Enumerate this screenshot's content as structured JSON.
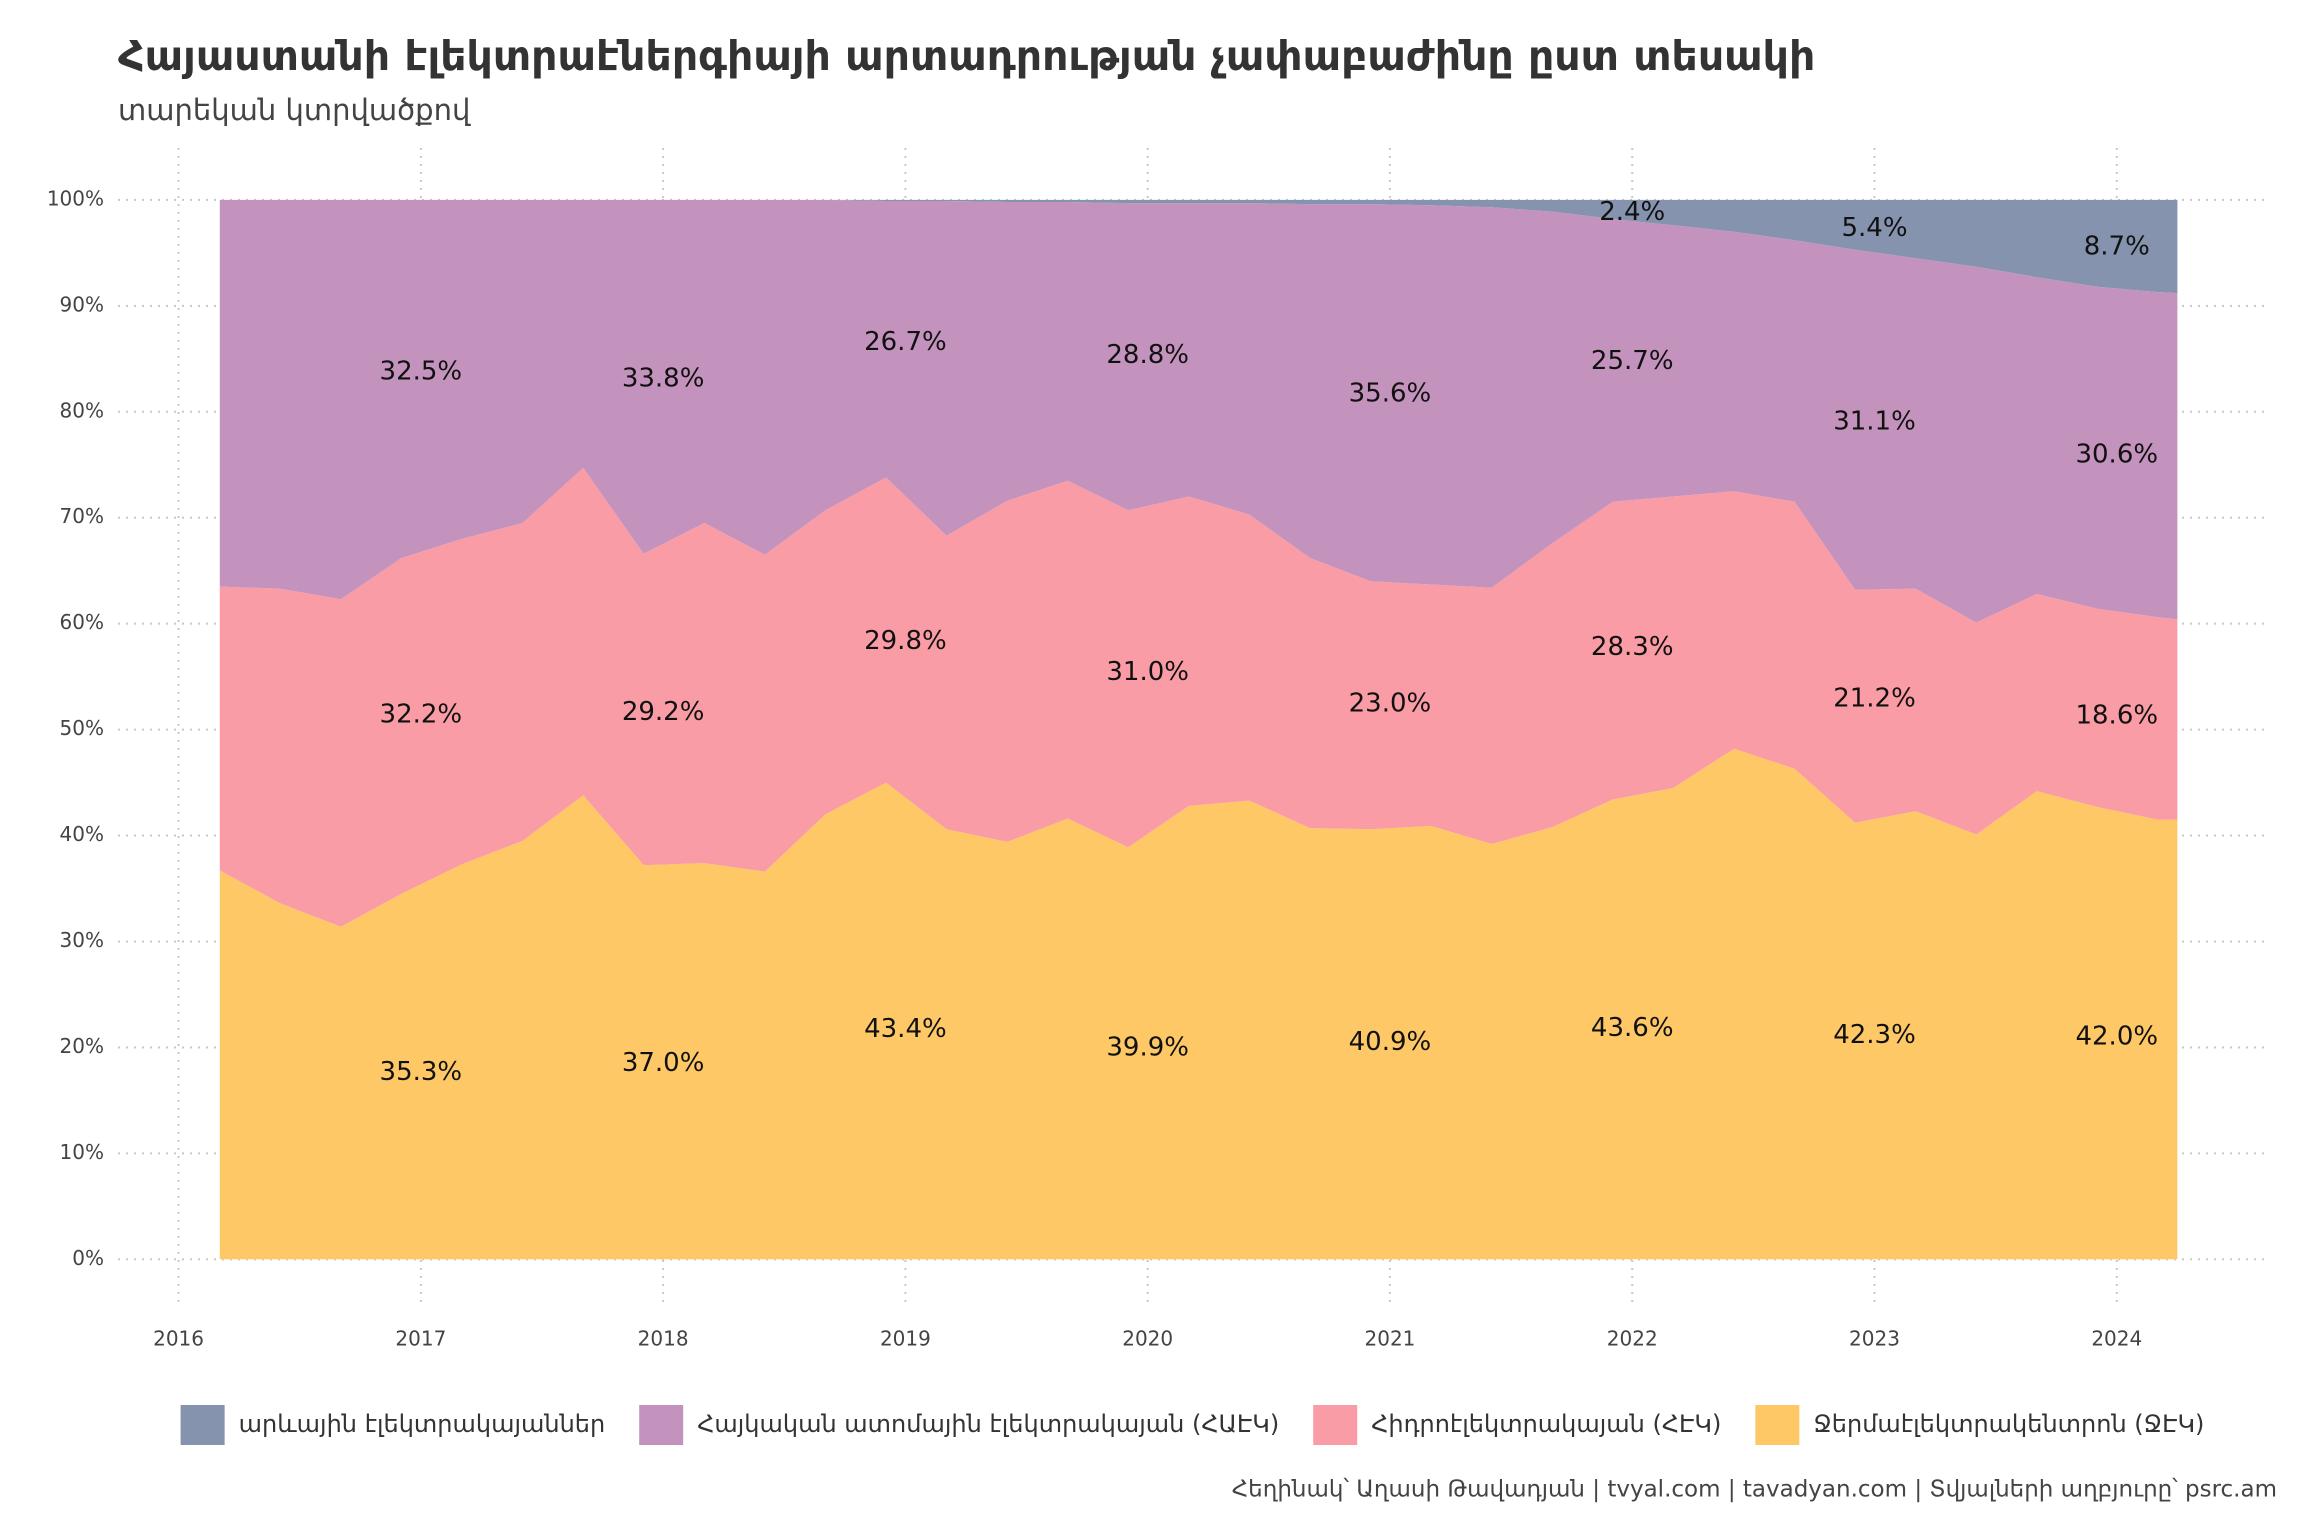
{
  "chart_data": {
    "type": "stacked_area",
    "title": "Հայաստանի էլեկտրաէներգիայի արտադրության չափաբաժինը ըստ տեսակի",
    "subtitle": "տարեկան կտրվածքով",
    "caption": "Հեղինակ՝ Աղասի Թավադյան   |   tvyal.com   |   tavadyan.com   |   Տվյալների աղբյուրը՝ psrc.am",
    "x": [
      2016.17,
      2016.42,
      2016.67,
      2016.92,
      2017.17,
      2017.42,
      2017.67,
      2017.92,
      2018.17,
      2018.42,
      2018.67,
      2018.92,
      2019.17,
      2019.42,
      2019.67,
      2019.92,
      2020.17,
      2020.42,
      2020.67,
      2020.92,
      2021.17,
      2021.42,
      2021.67,
      2021.92,
      2022.17,
      2022.42,
      2022.67,
      2022.92,
      2023.17,
      2023.42,
      2023.67,
      2023.92,
      2024.17,
      2024.25
    ],
    "series": [
      {
        "name": "արևային էլեկտրակայաններ",
        "color": "#8593ae",
        "values": [
          0,
          0,
          0,
          0,
          0,
          0,
          0,
          0,
          0,
          0,
          0,
          0.1,
          0.1,
          0.2,
          0.2,
          0.3,
          0.3,
          0.3,
          0.4,
          0.4,
          0.5,
          0.7,
          1.1,
          1.8,
          2.4,
          3,
          3.8,
          4.7,
          5.5,
          6.3,
          7.3,
          8.2,
          8.7,
          8.8
        ],
        "annual_values": [
          null,
          null,
          null,
          null,
          null,
          2.4,
          5.4,
          8.7
        ],
        "annual_value_labels": [
          null,
          null,
          null,
          null,
          null,
          "2.4%",
          "5.4%",
          "8.7%"
        ]
      },
      {
        "name": "Հայկական ատոմային էլեկտրակայան (ՀԱԷԿ)",
        "color": "#c493bd",
        "values": [
          36.5,
          36.7,
          37.7,
          33.8,
          32,
          30.5,
          25.3,
          33.4,
          30.5,
          33.5,
          29.3,
          26.1,
          31.6,
          28.2,
          26.3,
          29,
          27.7,
          29.4,
          33.4,
          35.6,
          35.8,
          35.9,
          31.3,
          26.7,
          25.6,
          24.5,
          24.7,
          32.1,
          31.2,
          33.6,
          29.9,
          30.4,
          30.7,
          30.8
        ],
        "annual_values": [
          32.5,
          33.8,
          26.7,
          28.8,
          35.6,
          25.7,
          31.1,
          30.6
        ],
        "annual_value_labels": [
          "32.5%",
          "33.8%",
          "26.7%",
          "28.8%",
          "35.6%",
          "25.7%",
          "31.1%",
          "30.6%"
        ]
      },
      {
        "name": "Հիդրոէլեկտրակայան (ՀԷԿ)",
        "color": "#f99ca5",
        "values": [
          26.8,
          29.7,
          30.9,
          31.7,
          30.7,
          30,
          30.9,
          29.4,
          32.1,
          29.9,
          28.7,
          28.8,
          27.7,
          32.2,
          31.9,
          31.8,
          29.2,
          27,
          25.5,
          23.4,
          22.8,
          24.2,
          26.8,
          28.1,
          27.5,
          24.3,
          25.2,
          22,
          21,
          20,
          18.6,
          18.7,
          19.1,
          18.9
        ],
        "annual_values": [
          32.2,
          29.2,
          29.8,
          31.0,
          23.0,
          28.3,
          21.2,
          18.6
        ],
        "annual_value_labels": [
          "32.2%",
          "29.2%",
          "29.8%",
          "31.0%",
          "23.0%",
          "28.3%",
          "21.2%",
          "18.6%"
        ]
      },
      {
        "name": "Ջերմաէլեկտրակենտրոն (ՋԷԿ)",
        "color": "#fec866",
        "values": [
          36.7,
          33.6,
          31.4,
          34.5,
          37.3,
          39.5,
          43.8,
          37.2,
          37.4,
          36.6,
          42,
          45,
          40.6,
          39.4,
          41.6,
          38.9,
          42.8,
          43.3,
          40.7,
          40.6,
          40.9,
          39.2,
          40.8,
          43.4,
          44.5,
          48.2,
          46.3,
          41.2,
          42.3,
          40.1,
          44.2,
          42.7,
          41.5,
          41.5
        ],
        "annual_values": [
          35.3,
          37.0,
          43.4,
          39.9,
          40.9,
          43.6,
          42.3,
          42.0
        ],
        "annual_value_labels": [
          "35.3%",
          "37.0%",
          "43.4%",
          "39.9%",
          "40.9%",
          "43.6%",
          "42.3%",
          "42.0%"
        ]
      }
    ],
    "annual_x": [
      2017,
      2018,
      2019,
      2020,
      2021,
      2022,
      2023,
      2024
    ],
    "xlim": [
      2015.75,
      2024.62
    ],
    "xticks": [
      2016,
      2017,
      2018,
      2019,
      2020,
      2021,
      2022,
      2023,
      2024
    ],
    "ylim": [
      -4.5,
      104.9
    ],
    "yticks": [
      {
        "value": 0,
        "label": "0%"
      },
      {
        "value": 10,
        "label": "10%"
      },
      {
        "value": 20,
        "label": "20%"
      },
      {
        "value": 30,
        "label": "30%"
      },
      {
        "value": 40,
        "label": "40%"
      },
      {
        "value": 50,
        "label": "50%"
      },
      {
        "value": 60,
        "label": "60%"
      },
      {
        "value": 70,
        "label": "70%"
      },
      {
        "value": 80,
        "label": "80%"
      },
      {
        "value": 90,
        "label": "90%"
      },
      {
        "value": 100,
        "label": "100%"
      }
    ],
    "grid": true,
    "legend": "bottom"
  }
}
